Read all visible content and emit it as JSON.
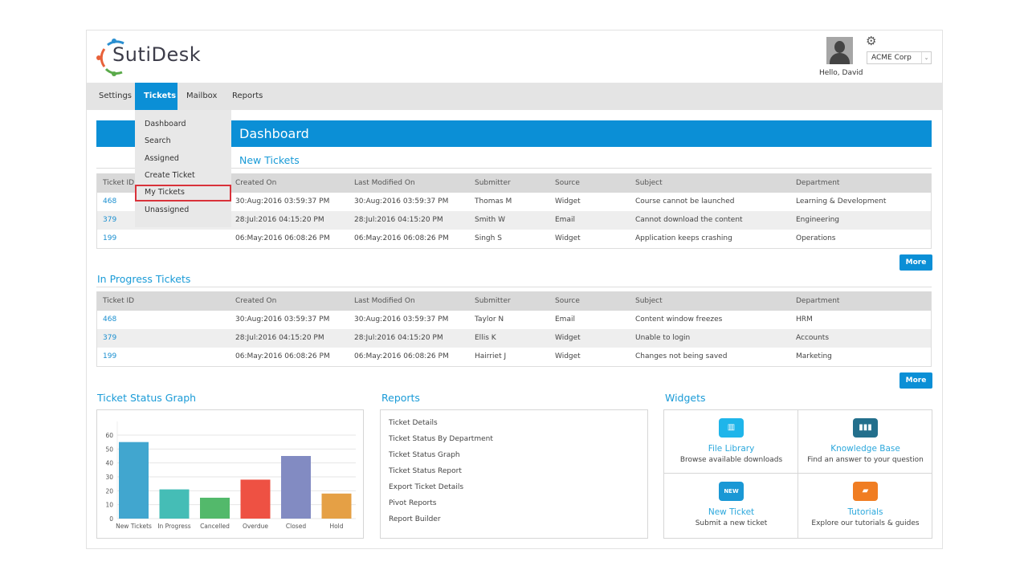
{
  "header": {
    "logo_text": "SutiDesk",
    "greeting": "Hello, David",
    "company": "ACME Corp"
  },
  "nav": [
    {
      "label": "Settings"
    },
    {
      "label": "Tickets"
    },
    {
      "label": "Mailbox"
    },
    {
      "label": "Reports"
    }
  ],
  "dropdown": [
    "Dashboard",
    "Search",
    "Assigned",
    "Create Ticket",
    "My Tickets",
    "Unassigned"
  ],
  "banner": "Dashboard",
  "columns": [
    "Ticket ID",
    "Created On",
    "Last Modified On",
    "Submitter",
    "Source",
    "Subject",
    "Department"
  ],
  "new_tickets": {
    "title": "New Tickets",
    "more": "More",
    "rows": [
      [
        "468",
        "30:Aug:2016 03:59:37 PM",
        "30:Aug:2016 03:59:37 PM",
        "Thomas M",
        "Widget",
        "Course cannot be launched",
        "Learning & Development"
      ],
      [
        "379",
        "28:Jul:2016 04:15:20 PM",
        "28:Jul:2016 04:15:20 PM",
        "Smith W",
        "Email",
        "Cannot download the content",
        "Engineering"
      ],
      [
        "199",
        "06:May:2016 06:08:26 PM",
        "06:May:2016 06:08:26 PM",
        "Singh S",
        "Widget",
        "Application keeps crashing",
        "Operations"
      ]
    ]
  },
  "in_progress": {
    "title": "In Progress Tickets",
    "more": "More",
    "rows": [
      [
        "468",
        "30:Aug:2016 03:59:37 PM",
        "30:Aug:2016 03:59:37 PM",
        "Taylor N",
        "Email",
        "Content window freezes",
        "HRM"
      ],
      [
        "379",
        "28:Jul:2016 04:15:20 PM",
        "28:Jul:2016 04:15:20 PM",
        "Ellis K",
        "Widget",
        "Unable to login",
        "Accounts"
      ],
      [
        "199",
        "06:May:2016 06:08:26 PM",
        "06:May:2016 06:08:26 PM",
        "Hairriet J",
        "Widget",
        "Changes not being saved",
        "Marketing"
      ]
    ]
  },
  "graph_title": "Ticket Status Graph",
  "chart_data": {
    "type": "bar",
    "title": "Ticket Status Graph",
    "categories": [
      "New Tickets",
      "In Progress",
      "Cancelled",
      "Overdue",
      "Closed",
      "Hold"
    ],
    "values": [
      55,
      21,
      15,
      28,
      45,
      18
    ],
    "colors": [
      "#41a6cf",
      "#45bdb6",
      "#53b96b",
      "#ee5143",
      "#828bc2",
      "#e5a045"
    ],
    "yticks": [
      0,
      10,
      20,
      30,
      40,
      50,
      60
    ],
    "ylim": [
      0,
      60
    ],
    "grid": true
  },
  "reports": {
    "title": "Reports",
    "items": [
      "Ticket Details",
      "Ticket Status By Department",
      "Ticket Status Graph",
      "Ticket Status Report",
      "Export Ticket Details",
      "Pivot Reports",
      "Report Builder"
    ]
  },
  "widgets": {
    "title": "Widgets",
    "items": [
      {
        "title": "File Library",
        "desc": "Browse available downloads",
        "icon": "folder-icon",
        "color": "#1fb5ea"
      },
      {
        "title": "Knowledge Base",
        "desc": "Find an answer to your question",
        "icon": "binders-icon",
        "color": "#236f8c"
      },
      {
        "title": "New Ticket",
        "desc": "Submit a new ticket",
        "icon": "ticket-icon",
        "color": "#1a98d5",
        "icon_text": "NEW"
      },
      {
        "title": "Tutorials",
        "desc": "Explore our tutorials & guides",
        "icon": "book-icon",
        "color": "#f07d22"
      }
    ]
  }
}
